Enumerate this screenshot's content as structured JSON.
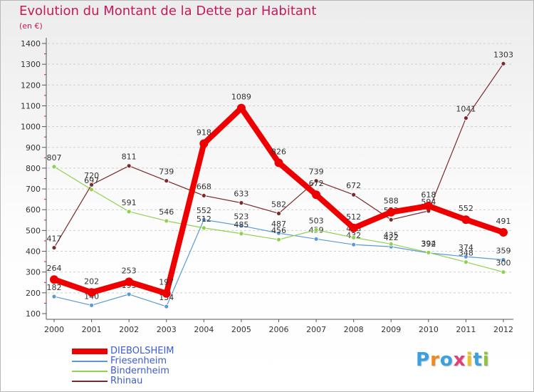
{
  "header": {
    "title": "Evolution du Montant de la Dette par Habitant",
    "subtitle": "(en €)"
  },
  "colors": {
    "title": "#c8185b",
    "legend_text": "#3d5bd6",
    "grid": "#d0d0d0",
    "axis": "#555555",
    "tick_text": "#333333"
  },
  "chart_data": {
    "type": "line",
    "x": [
      "2000",
      "2001",
      "2002",
      "2003",
      "2004",
      "2005",
      "2006",
      "2007",
      "2008",
      "2009",
      "2010",
      "2011",
      "2012"
    ],
    "ylim": [
      100,
      1400
    ],
    "yticks": [
      100,
      200,
      300,
      400,
      500,
      600,
      700,
      800,
      900,
      1000,
      1100,
      1200,
      1300,
      1400
    ],
    "grid": "dashed horizontal",
    "legend_position": "bottom-left",
    "series": [
      {
        "name": "DIEBOLSHEIM",
        "color": "#ee0000",
        "highlight": true,
        "values": [
          264,
          202,
          253,
          197,
          918,
          1089,
          826,
          672,
          512,
          588,
          618,
          552,
          491
        ]
      },
      {
        "name": "Friesenheim",
        "color": "#5b9bd5",
        "highlight": false,
        "values": [
          182,
          140,
          193,
          134,
          552,
          523,
          487,
          459,
          432,
          422,
          392,
          374,
          359
        ]
      },
      {
        "name": "Bindernheim",
        "color": "#8fd14f",
        "highlight": false,
        "values": [
          807,
          697,
          591,
          546,
          512,
          485,
          456,
          503,
          466,
          435,
          394,
          348,
          300
        ]
      },
      {
        "name": "Rhinau",
        "color": "#7a2a2a",
        "highlight": false,
        "values": [
          417,
          720,
          811,
          739,
          668,
          633,
          582,
          739,
          672,
          552,
          594,
          1041,
          1303
        ]
      }
    ]
  },
  "legend": {
    "items": [
      {
        "label": "DIEBOLSHEIM"
      },
      {
        "label": "Friesenheim"
      },
      {
        "label": "Bindernheim"
      },
      {
        "label": "Rhinau"
      }
    ]
  },
  "logo": {
    "text": "Proxiti",
    "letter_colors": [
      "#3aa0e0",
      "#f08a1c",
      "#3aa0e0",
      "#e0407a",
      "#f0c020",
      "#3aa0e0",
      "#8fc43a"
    ]
  }
}
